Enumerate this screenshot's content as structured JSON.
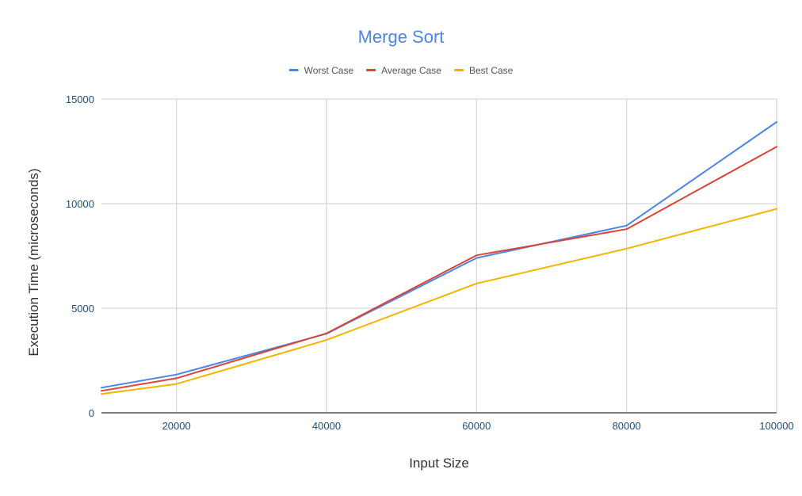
{
  "chart_data": {
    "type": "line",
    "title": "Merge Sort",
    "xlabel": "Input Size",
    "ylabel": "Execution Time (microseconds)",
    "x": [
      10000,
      20000,
      40000,
      60000,
      80000,
      100000
    ],
    "xlim": [
      10000,
      100000
    ],
    "ylim": [
      0,
      15000
    ],
    "x_ticks": [
      20000,
      40000,
      60000,
      80000,
      100000
    ],
    "y_ticks": [
      0,
      5000,
      10000,
      15000
    ],
    "x_tick_labels": [
      "20000",
      "40000",
      "60000",
      "80000",
      "100000"
    ],
    "y_tick_labels": [
      "0",
      "5000",
      "10000",
      "15000"
    ],
    "grid": true,
    "legend_position": "top-center",
    "series": [
      {
        "name": "Worst Case",
        "color": "#4a86e8",
        "values": [
          1200,
          1830,
          3780,
          7400,
          8950,
          13900
        ]
      },
      {
        "name": "Average Case",
        "color": "#db4437",
        "values": [
          1050,
          1650,
          3800,
          7530,
          8780,
          12720
        ]
      },
      {
        "name": "Best Case",
        "color": "#f4b400",
        "values": [
          900,
          1380,
          3480,
          6180,
          7850,
          9750
        ]
      }
    ],
    "colors": {
      "title": "#4a86e8",
      "grid": "#cccccc",
      "axis": "#333333",
      "tick_text": "#1f4e79"
    }
  }
}
